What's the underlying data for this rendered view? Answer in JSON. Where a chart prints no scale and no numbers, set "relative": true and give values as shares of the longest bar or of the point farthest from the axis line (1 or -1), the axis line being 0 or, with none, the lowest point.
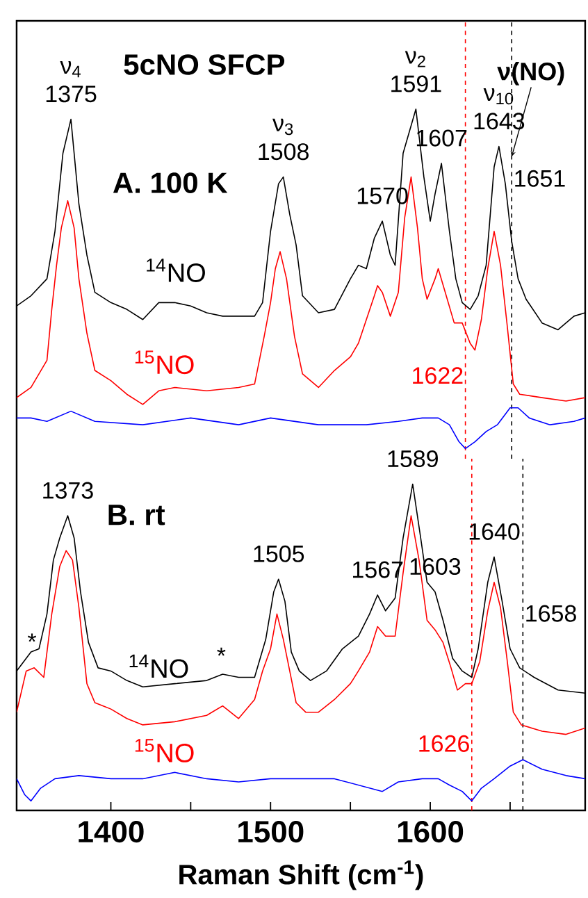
{
  "chart_data": [
    {
      "type": "line",
      "title": "5cNO SFCP",
      "subtitle": "A. 100 K",
      "relative": true,
      "xlim": [
        1341,
        1697
      ],
      "tick_labels": false,
      "series": [
        {
          "name": "$^{14}$NO",
          "color": "#000000",
          "x": [
            1341,
            1350,
            1360,
            1365,
            1370,
            1375,
            1380,
            1385,
            1390,
            1400,
            1410,
            1420,
            1430,
            1440,
            1450,
            1460,
            1470,
            1480,
            1490,
            1495,
            1500,
            1505,
            1508,
            1512,
            1516,
            1520,
            1530,
            1540,
            1550,
            1555,
            1560,
            1565,
            1570,
            1575,
            1578,
            1583,
            1591,
            1596,
            1600,
            1603,
            1607,
            1612,
            1616,
            1620,
            1625,
            1630,
            1635,
            1640,
            1643,
            1647,
            1651,
            1655,
            1660,
            1670,
            1680,
            1690,
            1697
          ],
          "values": [
            0.42,
            0.45,
            0.5,
            0.64,
            0.87,
            0.97,
            0.72,
            0.57,
            0.46,
            0.43,
            0.41,
            0.38,
            0.43,
            0.43,
            0.42,
            0.4,
            0.39,
            0.39,
            0.39,
            0.43,
            0.64,
            0.78,
            0.8,
            0.69,
            0.6,
            0.45,
            0.4,
            0.41,
            0.5,
            0.54,
            0.53,
            0.62,
            0.67,
            0.57,
            0.54,
            0.87,
            1.0,
            0.8,
            0.67,
            0.75,
            0.84,
            0.64,
            0.5,
            0.43,
            0.41,
            0.45,
            0.54,
            0.83,
            0.89,
            0.78,
            0.61,
            0.5,
            0.44,
            0.37,
            0.35,
            0.39,
            0.4
          ]
        },
        {
          "name": "$^{15}$NO",
          "color": "#ff0000",
          "x": [
            1341,
            1350,
            1360,
            1363,
            1366,
            1369,
            1373,
            1377,
            1380,
            1385,
            1390,
            1400,
            1410,
            1420,
            1430,
            1440,
            1460,
            1480,
            1490,
            1496,
            1500,
            1503,
            1506,
            1510,
            1515,
            1520,
            1530,
            1540,
            1550,
            1555,
            1560,
            1565,
            1567,
            1570,
            1575,
            1580,
            1584,
            1588,
            1592,
            1595,
            1598,
            1603,
            1605,
            1610,
            1615,
            1620,
            1625,
            1628,
            1632,
            1636,
            1640,
            1644,
            1648,
            1652,
            1656,
            1670,
            1685,
            1697
          ],
          "values": [
            0.15,
            0.18,
            0.26,
            0.41,
            0.54,
            0.65,
            0.73,
            0.65,
            0.5,
            0.34,
            0.23,
            0.2,
            0.16,
            0.13,
            0.17,
            0.18,
            0.17,
            0.18,
            0.19,
            0.33,
            0.43,
            0.53,
            0.58,
            0.5,
            0.33,
            0.22,
            0.18,
            0.23,
            0.27,
            0.31,
            0.38,
            0.45,
            0.48,
            0.46,
            0.39,
            0.46,
            0.68,
            0.8,
            0.65,
            0.5,
            0.44,
            0.5,
            0.53,
            0.45,
            0.37,
            0.37,
            0.31,
            0.29,
            0.38,
            0.53,
            0.64,
            0.54,
            0.37,
            0.19,
            0.16,
            0.15,
            0.14,
            0.15
          ]
        },
        {
          "color": "#0000ff",
          "x": [
            1341,
            1350,
            1360,
            1375,
            1390,
            1420,
            1450,
            1480,
            1500,
            1530,
            1560,
            1580,
            1595,
            1605,
            1612,
            1618,
            1622,
            1628,
            1635,
            1642,
            1650,
            1655,
            1662,
            1675,
            1690,
            1697
          ],
          "values": [
            0.09,
            0.09,
            0.08,
            0.11,
            0.08,
            0.07,
            0.09,
            0.07,
            0.09,
            0.07,
            0.07,
            0.08,
            0.09,
            0.09,
            0.07,
            0.02,
            0.0,
            0.02,
            0.05,
            0.07,
            0.12,
            0.12,
            0.09,
            0.07,
            0.08,
            0.09
          ]
        }
      ],
      "ref_lines": [
        {
          "axis": "x",
          "value": 1651,
          "label": "1651",
          "color": "#000000",
          "line_style": "dashed"
        },
        {
          "axis": "x",
          "value": 1622,
          "label": "1622",
          "color": "#ff0000",
          "line_style": "dashed"
        }
      ],
      "annotations": [
        {
          "text": "1375",
          "x": 1375,
          "y": 0.97
        },
        {
          "text": "ν$_{4}$",
          "x": 1375,
          "y": 0.97
        },
        {
          "text": "1508",
          "x": 1508,
          "y": 0.8
        },
        {
          "text": "ν$_{3}$",
          "x": 1508,
          "y": 0.8
        },
        {
          "text": "1570",
          "x": 1570,
          "y": 0.67
        },
        {
          "text": "1591",
          "x": 1591,
          "y": 1.0
        },
        {
          "text": "ν$_{2}$",
          "x": 1591,
          "y": 1.0
        },
        {
          "text": "1607",
          "x": 1607,
          "y": 0.84
        },
        {
          "text": "1643",
          "x": 1643,
          "y": 0.89
        },
        {
          "text": "ν$_{10}$",
          "x": 1643,
          "y": 0.89
        },
        {
          "text": "ν(NO)",
          "x": 1651,
          "y": 0.86
        }
      ]
    },
    {
      "type": "line",
      "title": "B. rt",
      "xlabel": "Raman Shift (cm$^{-1}$)",
      "relative": true,
      "xlim": [
        1341,
        1697
      ],
      "tick_labels": "x",
      "xticks": [
        1400,
        {
          "value": 1450,
          "label": null
        },
        1500,
        {
          "value": 1550,
          "label": null
        },
        1600,
        {
          "value": 1650,
          "label": null
        }
      ],
      "series": [
        {
          "name": "$^{14}$NO",
          "color": "#000000",
          "x": [
            1341,
            1350,
            1355,
            1360,
            1364,
            1368,
            1373,
            1377,
            1381,
            1386,
            1392,
            1400,
            1410,
            1420,
            1440,
            1460,
            1470,
            1480,
            1490,
            1497,
            1502,
            1505,
            1509,
            1513,
            1518,
            1525,
            1535,
            1545,
            1555,
            1562,
            1567,
            1572,
            1578,
            1583,
            1589,
            1594,
            1598,
            1603,
            1608,
            1614,
            1620,
            1626,
            1630,
            1636,
            1640,
            1645,
            1650,
            1656,
            1665,
            1680,
            1697
          ],
          "values": [
            0.41,
            0.47,
            0.48,
            0.59,
            0.76,
            0.83,
            0.9,
            0.83,
            0.66,
            0.5,
            0.42,
            0.41,
            0.38,
            0.36,
            0.37,
            0.38,
            0.4,
            0.39,
            0.39,
            0.51,
            0.66,
            0.7,
            0.63,
            0.47,
            0.41,
            0.38,
            0.41,
            0.48,
            0.52,
            0.59,
            0.65,
            0.6,
            0.64,
            0.83,
            1.0,
            0.83,
            0.69,
            0.66,
            0.57,
            0.45,
            0.41,
            0.39,
            0.48,
            0.69,
            0.77,
            0.63,
            0.48,
            0.42,
            0.39,
            0.35,
            0.34
          ]
        },
        {
          "name": "$^{15}$NO",
          "color": "#ff0000",
          "x": [
            1341,
            1347,
            1352,
            1358,
            1363,
            1368,
            1372,
            1376,
            1380,
            1385,
            1390,
            1400,
            1410,
            1420,
            1440,
            1460,
            1470,
            1480,
            1490,
            1495,
            1500,
            1504,
            1508,
            1512,
            1516,
            1522,
            1530,
            1540,
            1550,
            1555,
            1562,
            1567,
            1572,
            1578,
            1583,
            1588,
            1593,
            1598,
            1603,
            1608,
            1613,
            1617,
            1622,
            1626,
            1631,
            1636,
            1640,
            1644,
            1648,
            1652,
            1657,
            1670,
            1685,
            1697
          ],
          "values": [
            0.28,
            0.41,
            0.42,
            0.39,
            0.59,
            0.74,
            0.79,
            0.76,
            0.61,
            0.37,
            0.31,
            0.29,
            0.26,
            0.24,
            0.25,
            0.27,
            0.3,
            0.26,
            0.32,
            0.41,
            0.48,
            0.59,
            0.51,
            0.41,
            0.31,
            0.28,
            0.28,
            0.32,
            0.37,
            0.41,
            0.47,
            0.55,
            0.52,
            0.52,
            0.72,
            0.9,
            0.76,
            0.57,
            0.54,
            0.5,
            0.42,
            0.35,
            0.37,
            0.37,
            0.44,
            0.6,
            0.69,
            0.61,
            0.45,
            0.28,
            0.24,
            0.22,
            0.21,
            0.23
          ]
        },
        {
          "color": "#0000ff",
          "x": [
            1341,
            1346,
            1350,
            1356,
            1365,
            1380,
            1400,
            1420,
            1440,
            1460,
            1480,
            1500,
            1520,
            1540,
            1555,
            1570,
            1580,
            1595,
            1605,
            1612,
            1620,
            1626,
            1632,
            1640,
            1650,
            1658,
            1670,
            1685,
            1697
          ],
          "values": [
            0.07,
            0.02,
            0.0,
            0.04,
            0.07,
            0.08,
            0.07,
            0.07,
            0.09,
            0.07,
            0.06,
            0.07,
            0.07,
            0.07,
            0.05,
            0.03,
            0.06,
            0.07,
            0.07,
            0.05,
            0.03,
            0.0,
            0.04,
            0.07,
            0.11,
            0.13,
            0.1,
            0.08,
            0.07
          ]
        }
      ],
      "ref_lines": [
        {
          "axis": "x",
          "value": 1658,
          "label": "1658",
          "color": "#000000",
          "line_style": "dashed"
        },
        {
          "axis": "x",
          "value": 1626,
          "label": "1626",
          "color": "#ff0000",
          "line_style": "dashed"
        }
      ],
      "annotations": [
        "*",
        {
          "text": "1373",
          "x": 1373,
          "y": 0.9
        },
        "*",
        {
          "text": "1505",
          "x": 1505,
          "y": 0.7
        },
        {
          "text": "1567",
          "x": 1567,
          "y": 0.65
        },
        {
          "text": "1589",
          "x": 1589,
          "y": 1.0
        },
        {
          "text": "1603",
          "x": 1603,
          "y": 0.66
        },
        {
          "text": "1640",
          "x": 1640,
          "y": 0.77
        }
      ]
    }
  ]
}
